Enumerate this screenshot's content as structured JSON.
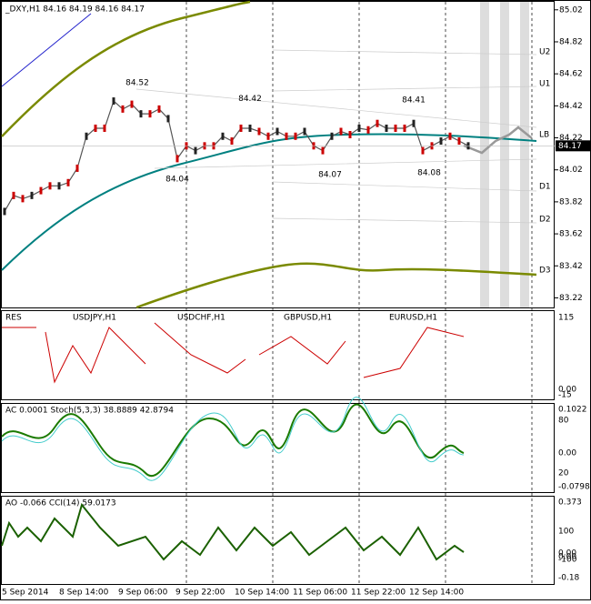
{
  "header": "_DXY,H1  84.16 84.19 84.16 84.17",
  "chart_data": {
    "type": "line",
    "color": "#555555",
    "values": [
      83.76,
      83.86,
      83.84,
      83.86,
      83.89,
      83.92,
      83.92,
      83.94,
      84.03,
      84.23,
      84.28,
      84.28,
      84.45,
      84.4,
      84.43,
      84.37,
      84.37,
      84.4,
      84.34,
      84.09,
      84.17,
      84.14,
      84.17,
      84.17,
      84.23,
      84.2,
      84.28,
      84.28,
      84.26,
      84.23,
      84.26,
      84.23,
      84.23,
      84.26,
      84.17,
      84.14,
      84.23,
      84.26,
      84.24,
      84.28,
      84.27,
      84.31,
      84.28,
      84.28,
      84.28,
      84.31,
      84.14,
      84.17,
      84.2,
      84.23,
      84.2,
      84.17
    ],
    "ylim": [
      83.16,
      85.07
    ],
    "yticks": [
      83.22,
      83.42,
      83.62,
      83.82,
      84.02,
      84.22,
      84.42,
      84.62,
      84.82,
      85.02
    ],
    "last_price": 84.17,
    "annotations": [
      {
        "value": 84.52,
        "label": "84.52"
      },
      {
        "value": 84.42,
        "label": "84.42"
      },
      {
        "value": 84.41,
        "label": "84.41"
      },
      {
        "value": 84.04,
        "label": "84.04"
      },
      {
        "value": 84.07,
        "label": "84.07"
      },
      {
        "value": 84.08,
        "label": "84.08"
      }
    ],
    "levels": [
      "U2",
      "U1",
      "LB",
      "D1",
      "D2",
      "D3"
    ],
    "x_labels": [
      "5 Sep 2014",
      "8 Sep 14:00",
      "9 Sep 06:00",
      "9 Sep 22:00",
      "10 Sep 14:00",
      "11 Sep 06:00",
      "11 Sep 22:00",
      "12 Sep 14:00"
    ]
  },
  "panes": [
    {
      "titles": [
        "RES",
        "USDJPY,H1",
        "USDCHF,H1",
        "GBPUSD,H1",
        "EURUSD,H1"
      ],
      "axis_labels": [
        "115",
        "0.00",
        "-15"
      ]
    },
    {
      "titles": [
        "AC 0.0001  Stoch(5,3,3) 38.8889 42.8794"
      ],
      "axis_labels": [
        "0.1022",
        "80",
        "0.00",
        "20",
        "-0.0798"
      ]
    },
    {
      "titles": [
        "AO -0.066  CCI(14) 59.0173"
      ],
      "axis_labels": [
        "0.373",
        "100",
        "0.00",
        "0.00",
        "-100",
        "-0.18"
      ]
    }
  ]
}
